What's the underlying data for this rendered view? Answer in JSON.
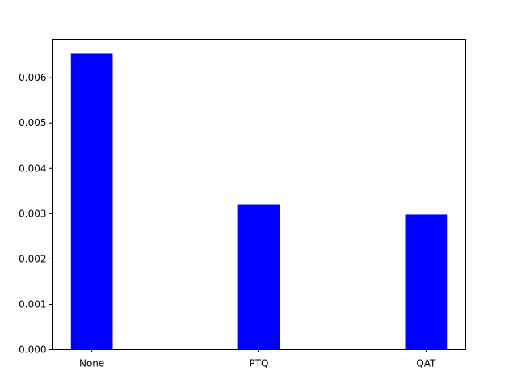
{
  "chart_data": {
    "type": "bar",
    "title": "",
    "xlabel": "",
    "ylabel": "",
    "categories": [
      "None",
      "PTQ",
      "QAT"
    ],
    "values": [
      0.00653,
      0.00321,
      0.00298
    ],
    "ylim": [
      0,
      0.00685
    ],
    "yticks": [
      0.0,
      0.001,
      0.002,
      0.003,
      0.004,
      0.005,
      0.006
    ],
    "ytick_labels": [
      "0.000",
      "0.001",
      "0.002",
      "0.003",
      "0.004",
      "0.005",
      "0.006"
    ],
    "bar_color": "#0000ff",
    "grid": false,
    "legend": "none"
  }
}
